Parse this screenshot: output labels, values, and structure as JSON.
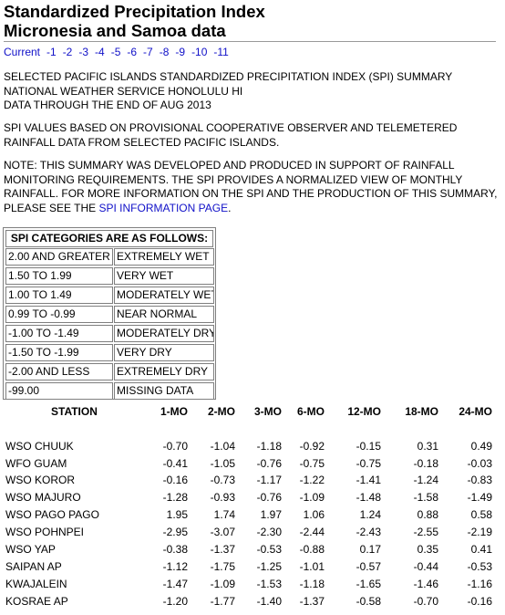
{
  "title": {
    "line1": "Standardized Precipitation Index",
    "line2": "Micronesia and Samoa data"
  },
  "nav": {
    "links": [
      "Current",
      "-1",
      "-2",
      "-3",
      "-4",
      "-5",
      "-6",
      "-7",
      "-8",
      "-9",
      "-10",
      "-11"
    ]
  },
  "summary": {
    "line1": "SELECTED PACIFIC ISLANDS STANDARDIZED PRECIPITATION INDEX (SPI) SUMMARY",
    "line2": "NATIONAL WEATHER SERVICE HONOLULU HI",
    "line3": "DATA THROUGH THE END OF AUG 2013"
  },
  "basis": {
    "line1": "SPI VALUES BASED ON PROVISIONAL COOPERATIVE OBSERVER AND TELEMETERED",
    "line2": "RAINFALL DATA FROM SELECTED PACIFIC ISLANDS."
  },
  "note": {
    "line1": "NOTE: THIS SUMMARY WAS DEVELOPED AND PRODUCED IN SUPPORT OF RAINFALL",
    "line2": "MONITORING REQUIREMENTS. THE SPI PROVIDES A NORMALIZED VIEW OF MONTHLY",
    "line3": "RAINFALL. FOR MORE INFORMATION ON THE SPI AND THE PRODUCTION OF THIS SUMMARY,",
    "line4_prefix": "PLEASE SEE THE ",
    "link": "SPI INFORMATION PAGE",
    "line4_suffix": "."
  },
  "categories": {
    "header": "SPI CATEGORIES ARE AS FOLLOWS:",
    "rows": [
      {
        "range": "2.00 AND GREATER",
        "label": "EXTREMELY WET"
      },
      {
        "range": "1.50 TO 1.99",
        "label": "VERY WET"
      },
      {
        "range": "1.00 TO 1.49",
        "label": "MODERATELY WET"
      },
      {
        "range": "0.99 TO -0.99",
        "label": "NEAR NORMAL"
      },
      {
        "range": "-1.00 TO -1.49",
        "label": "MODERATELY DRY"
      },
      {
        "range": "-1.50 TO -1.99",
        "label": "VERY DRY"
      },
      {
        "range": "-2.00 AND LESS",
        "label": "EXTREMELY DRY"
      },
      {
        "range": "-99.00",
        "label": "MISSING DATA"
      }
    ]
  },
  "spi_table": {
    "columns": [
      "STATION",
      "1-MO",
      "2-MO",
      "3-MO",
      "6-MO",
      "12-MO",
      "18-MO",
      "24-MO"
    ],
    "rows": [
      {
        "station": "WSO CHUUK",
        "values": [
          "-0.70",
          "-1.04",
          "-1.18",
          "-0.92",
          "-0.15",
          "0.31",
          "0.49"
        ]
      },
      {
        "station": "WFO GUAM",
        "values": [
          "-0.41",
          "-1.05",
          "-0.76",
          "-0.75",
          "-0.75",
          "-0.18",
          "-0.03"
        ]
      },
      {
        "station": "WSO KOROR",
        "values": [
          "-0.16",
          "-0.73",
          "-1.17",
          "-1.22",
          "-1.41",
          "-1.24",
          "-0.83"
        ]
      },
      {
        "station": "WSO MAJURO",
        "values": [
          "-1.28",
          "-0.93",
          "-0.76",
          "-1.09",
          "-1.48",
          "-1.58",
          "-1.49"
        ]
      },
      {
        "station": "WSO PAGO PAGO",
        "values": [
          "1.95",
          "1.74",
          "1.97",
          "1.06",
          "1.24",
          "0.88",
          "0.58"
        ]
      },
      {
        "station": "WSO POHNPEI",
        "values": [
          "-2.95",
          "-3.07",
          "-2.30",
          "-2.44",
          "-2.43",
          "-2.55",
          "-2.19"
        ]
      },
      {
        "station": "WSO YAP",
        "values": [
          "-0.38",
          "-1.37",
          "-0.53",
          "-0.88",
          "0.17",
          "0.35",
          "0.41"
        ]
      },
      {
        "station": "SAIPAN AP",
        "values": [
          "-1.12",
          "-1.75",
          "-1.25",
          "-1.01",
          "-0.57",
          "-0.44",
          "-0.53"
        ]
      },
      {
        "station": "KWAJALEIN",
        "values": [
          "-1.47",
          "-1.09",
          "-1.53",
          "-1.18",
          "-1.65",
          "-1.46",
          "-1.16"
        ]
      },
      {
        "station": "KOSRAE AP",
        "values": [
          "-1.20",
          "-1.77",
          "-1.40",
          "-1.37",
          "-0.58",
          "-0.70",
          "-0.16"
        ]
      }
    ]
  }
}
